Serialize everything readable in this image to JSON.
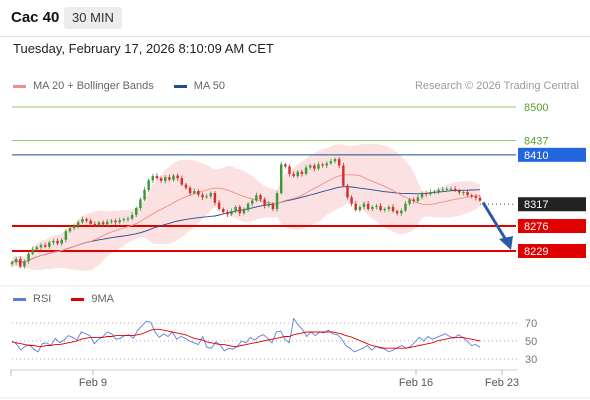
{
  "header": {
    "title": "Cac 40",
    "timeframe": "30 MIN"
  },
  "datetime": "Tuesday, February 17, 2026 8:10:09 AM CET",
  "legend": {
    "ma20": {
      "label": "MA 20 + Bollinger Bands",
      "color": "#f28c8c"
    },
    "ma50": {
      "label": "MA 50",
      "color": "#1f4e8c"
    }
  },
  "credit": "Research © 2026 Trading Central",
  "rsi_legend": {
    "rsi": {
      "label": "RSI",
      "color": "#5b7fd6"
    },
    "ma": {
      "label": "9MA",
      "color": "#e00000"
    }
  },
  "chart_data": [
    {
      "type": "candlestick",
      "title": "",
      "ylim": [
        8180,
        8530
      ],
      "x_ticks": [
        "Feb 9",
        "Feb 16",
        "Feb 23"
      ],
      "levels": [
        {
          "label": "8500",
          "value": 8500,
          "color": "#7ab83a",
          "style": "thin",
          "text_color": "#5aa02c"
        },
        {
          "label": "8437",
          "value": 8437,
          "color": "#7ab83a",
          "style": "thin",
          "text_color": "#5aa02c"
        },
        {
          "label": "8410",
          "value": 8410,
          "color": "#1f4e8c",
          "style": "tag",
          "tag_color": "#2266dd"
        },
        {
          "label": "8317",
          "value": 8317,
          "color": "#555555",
          "style": "tag-dotted",
          "tag_color": "#222222"
        },
        {
          "label": "8276",
          "value": 8276,
          "color": "#e00000",
          "style": "tag-thick",
          "tag_color": "#e00000"
        },
        {
          "label": "8229",
          "value": 8229,
          "color": "#e00000",
          "style": "tag-thick",
          "tag_color": "#e00000"
        }
      ],
      "close": [
        8208,
        8214,
        8200,
        8210,
        8224,
        8232,
        8236,
        8240,
        8237,
        8245,
        8248,
        8243,
        8250,
        8266,
        8272,
        8276,
        8283,
        8289,
        8286,
        8280,
        8278,
        8283,
        8279,
        8284,
        8286,
        8283,
        8287,
        8289,
        8290,
        8297,
        8310,
        8326,
        8344,
        8362,
        8370,
        8366,
        8361,
        8368,
        8363,
        8371,
        8366,
        8354,
        8348,
        8338,
        8342,
        8335,
        8330,
        8332,
        8338,
        8320,
        8308,
        8302,
        8298,
        8304,
        8312,
        8300,
        8306,
        8318,
        8324,
        8334,
        8326,
        8314,
        8318,
        8308,
        8338,
        8392,
        8388,
        8374,
        8370,
        8378,
        8374,
        8386,
        8390,
        8384,
        8392,
        8390,
        8394,
        8398,
        8402,
        8390,
        8352,
        8330,
        8318,
        8306,
        8312,
        8318,
        8308,
        8312,
        8314,
        8306,
        8308,
        8312,
        8304,
        8300,
        8305,
        8318,
        8326,
        8323,
        8330,
        8338,
        8336,
        8340,
        8341,
        8344,
        8345,
        8346,
        8346,
        8343,
        8339,
        8340,
        8334,
        8332,
        8329,
        8324
      ]
    },
    {
      "type": "line",
      "title": "RSI",
      "ylim": [
        20,
        80
      ],
      "y_ticks": [
        70,
        50,
        30
      ],
      "series": [
        {
          "name": "RSI",
          "color": "#5b7fd6",
          "values": [
            50,
            47,
            40,
            44,
            46,
            41,
            38,
            47,
            48,
            45,
            53,
            48,
            51,
            56,
            54,
            51,
            60,
            58,
            56,
            47,
            52,
            55,
            60,
            58,
            52,
            53,
            56,
            57,
            53,
            62,
            67,
            72,
            71,
            60,
            54,
            58,
            55,
            60,
            52,
            55,
            53,
            50,
            48,
            46,
            55,
            43,
            42,
            49,
            46,
            39,
            42,
            41,
            44,
            50,
            48,
            54,
            51,
            55,
            57,
            53,
            48,
            60,
            61,
            52,
            48,
            75,
            68,
            63,
            55,
            60,
            56,
            60,
            59,
            62,
            58,
            57,
            53,
            45,
            42,
            38,
            40,
            42,
            45,
            40,
            44,
            42,
            41,
            38,
            40,
            43,
            45,
            42,
            44,
            49,
            54,
            50,
            55,
            52,
            54,
            56,
            58,
            55,
            53,
            57,
            54,
            50,
            45,
            46,
            43
          ]
        },
        {
          "name": "9MA",
          "color": "#e00000",
          "values": [
            49,
            48,
            47,
            46,
            45,
            45,
            44,
            44,
            45,
            45,
            46,
            46,
            47,
            48,
            49,
            50,
            52,
            53,
            54,
            54,
            54,
            54,
            55,
            55,
            56,
            56,
            56,
            56,
            56,
            57,
            58,
            60,
            62,
            63,
            63,
            62,
            61,
            60,
            59,
            58,
            57,
            55,
            53,
            52,
            51,
            49,
            48,
            47,
            46,
            46,
            45,
            44,
            44,
            45,
            46,
            47,
            48,
            49,
            50,
            51,
            52,
            53,
            54,
            55,
            55,
            57,
            58,
            59,
            60,
            60,
            60,
            60,
            60,
            60,
            60,
            59,
            58,
            56,
            55,
            53,
            51,
            49,
            47,
            45,
            44,
            43,
            42,
            42,
            42,
            42,
            42,
            42,
            43,
            44,
            45,
            46,
            47,
            48,
            50,
            51,
            52,
            53,
            54,
            54,
            54,
            53,
            52,
            51,
            50
          ]
        }
      ]
    }
  ]
}
